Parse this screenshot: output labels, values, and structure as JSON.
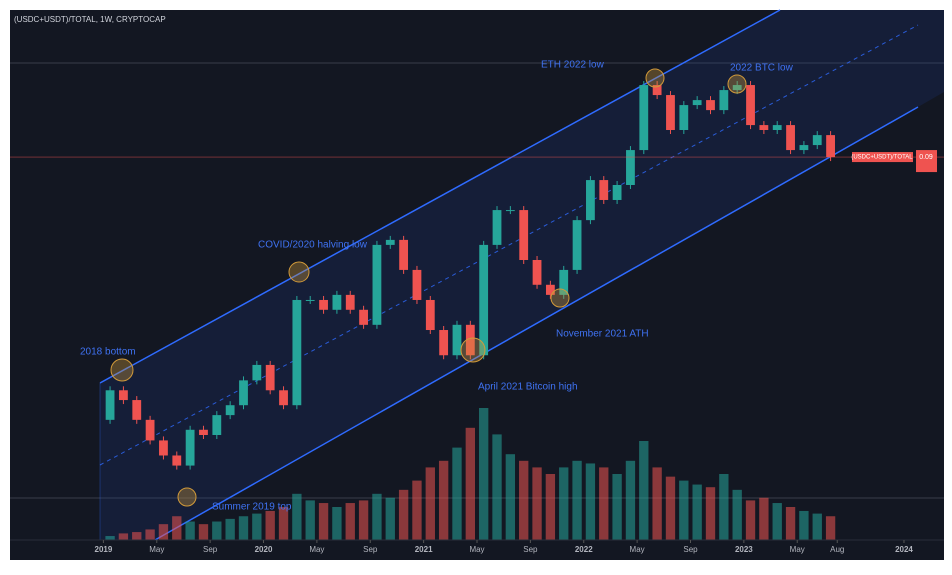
{
  "chart_data": {
    "type": "candlestick",
    "title": "(USDC+USDT)/TOTAL, 1W, CRYPTOCAP",
    "log_scale": true,
    "up_color": "#26a69a",
    "down_color": "#ef5350",
    "x": [
      "2019-01",
      "2019-02",
      "2019-03",
      "2019-04",
      "2019-05",
      "2019-06",
      "2019-07",
      "2019-08",
      "2019-09",
      "2019-10",
      "2019-11",
      "2019-12",
      "2020-01",
      "2020-02",
      "2020-03",
      "2020-04",
      "2020-05",
      "2020-06",
      "2020-07",
      "2020-08",
      "2020-09",
      "2020-10",
      "2020-11",
      "2020-12",
      "2021-01",
      "2021-02",
      "2021-03",
      "2021-04",
      "2021-05",
      "2021-06",
      "2021-07",
      "2021-08",
      "2021-09",
      "2021-10",
      "2021-11",
      "2021-12",
      "2022-01",
      "2022-02",
      "2022-03",
      "2022-04",
      "2022-05",
      "2022-06",
      "2022-07",
      "2022-08",
      "2022-09",
      "2022-10",
      "2022-11",
      "2022-12",
      "2023-01",
      "2023-02",
      "2023-03",
      "2023-04",
      "2023-05",
      "2023-06",
      "2023-07"
    ],
    "open": [
      0.0156,
      0.019,
      0.0178,
      0.0156,
      0.0136,
      0.0123,
      0.0115,
      0.0146,
      0.0141,
      0.0161,
      0.0172,
      0.0203,
      0.0225,
      0.019,
      0.0172,
      0.0347,
      0.0347,
      0.0325,
      0.0359,
      0.0325,
      0.0294,
      0.0501,
      0.0518,
      0.0424,
      0.0347,
      0.0284,
      0.024,
      0.0294,
      0.024,
      0.0501,
      0.0632,
      0.0632,
      0.0453,
      0.0384,
      0.0359,
      0.0424,
      0.0591,
      0.0772,
      0.0676,
      0.0747,
      0.0943,
      0.1455,
      0.1361,
      0.1078,
      0.1273,
      0.1316,
      0.1231,
      0.1407,
      0.1455,
      0.1114,
      0.1078,
      0.1114,
      0.0943,
      0.0975,
      0.1042
    ],
    "close": [
      0.019,
      0.0178,
      0.0156,
      0.0136,
      0.0123,
      0.0115,
      0.0146,
      0.0141,
      0.0161,
      0.0172,
      0.0203,
      0.0225,
      0.019,
      0.0172,
      0.0347,
      0.0347,
      0.0325,
      0.0359,
      0.0325,
      0.0294,
      0.0501,
      0.0518,
      0.0424,
      0.0347,
      0.0284,
      0.024,
      0.0294,
      0.024,
      0.0501,
      0.0632,
      0.0632,
      0.0453,
      0.0384,
      0.0359,
      0.0424,
      0.0591,
      0.0772,
      0.0676,
      0.0747,
      0.0943,
      0.1455,
      0.1361,
      0.1078,
      0.1273,
      0.1316,
      0.1231,
      0.1407,
      0.1455,
      0.1114,
      0.1078,
      0.1114,
      0.0943,
      0.0975,
      0.1042,
      0.09
    ],
    "volume": [
      3,
      5,
      6,
      8,
      12,
      18,
      14,
      12,
      14,
      16,
      18,
      20,
      22,
      25,
      35,
      30,
      28,
      25,
      28,
      30,
      35,
      32,
      38,
      45,
      55,
      60,
      70,
      85,
      100,
      80,
      65,
      60,
      55,
      50,
      55,
      60,
      58,
      55,
      50,
      60,
      75,
      55,
      48,
      45,
      42,
      40,
      50,
      38,
      30,
      32,
      28,
      25,
      22,
      20,
      18
    ],
    "xlim": [
      "2018-06",
      "2024-04"
    ],
    "xticks": [
      {
        "value": "2019-01",
        "label": "2019"
      },
      {
        "value": "2019-05",
        "label": "May"
      },
      {
        "value": "2019-09",
        "label": "Sep"
      },
      {
        "value": "2020-01",
        "label": "2020"
      },
      {
        "value": "2020-05",
        "label": "May"
      },
      {
        "value": "2020-09",
        "label": "Sep"
      },
      {
        "value": "2021-01",
        "label": "2021"
      },
      {
        "value": "2021-05",
        "label": "May"
      },
      {
        "value": "2021-09",
        "label": "Sep"
      },
      {
        "value": "2022-01",
        "label": "2022"
      },
      {
        "value": "2022-05",
        "label": "May"
      },
      {
        "value": "2022-09",
        "label": "Sep"
      },
      {
        "value": "2023-01",
        "label": "2023"
      },
      {
        "value": "2023-05",
        "label": "May"
      },
      {
        "value": "2023-08",
        "label": "Aug"
      },
      {
        "value": "2024-01",
        "label": "2024"
      }
    ],
    "ylim": [
      0.007,
      0.24
    ],
    "last_price": {
      "symbol": "(USDC+USDT)/TOTAL",
      "value": 0.09
    },
    "annotations": [
      "2018 bottom",
      "COVID/2020 halving low",
      "April 2021 Bitcoin high",
      "November 2021 ATH",
      "ETH 2022 low",
      "2022 BTC low",
      "Summer 2019 top"
    ]
  }
}
